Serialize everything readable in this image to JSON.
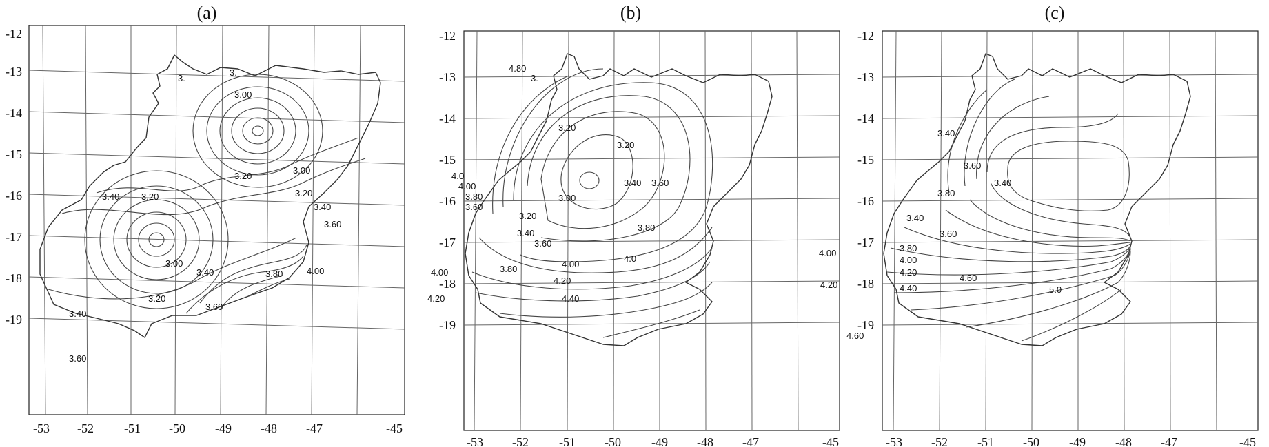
{
  "panels": [
    {
      "title": "(a)",
      "x_ticks": [
        "-53",
        "-52",
        "-51",
        "-50",
        "-49",
        "-48",
        "-47",
        "-45"
      ],
      "y_ticks": [
        "-12",
        "-13",
        "-14",
        "-15",
        "-16",
        "-17",
        "-18",
        "-19"
      ],
      "contour_labels": [
        "3.00",
        "3.00",
        "3.00",
        "3.20",
        "3.20",
        "3.20",
        "3.20",
        "3.40",
        "3.40",
        "3.40",
        "3.40",
        "3.60",
        "3.60",
        "3.80",
        "4.00",
        "3.",
        "3.",
        "3.60"
      ]
    },
    {
      "title": "(b)",
      "x_ticks": [
        "-53",
        "-52",
        "-51",
        "-50",
        "-49",
        "-48",
        "-47",
        "-45"
      ],
      "y_ticks": [
        "-12",
        "-13",
        "-14",
        "-15",
        "-16",
        "-17",
        "-18",
        "-19"
      ],
      "contour_labels": [
        "3.20",
        "3.20",
        "3.00",
        "3.20",
        "3.40",
        "3.40",
        "3.60",
        "3.60",
        "3.80",
        "3.80",
        "3.80",
        "4.00",
        "4.00",
        "4.00",
        "4.20",
        "4.20",
        "4.40",
        "4.0",
        "3.",
        "3.60",
        "4.0",
        "4.80"
      ]
    },
    {
      "title": "(c)",
      "x_ticks": [
        "-53",
        "-52",
        "-51",
        "-50",
        "-49",
        "-48",
        "-47",
        "-45"
      ],
      "y_ticks": [
        "-12",
        "-13",
        "-14",
        "-15",
        "-16",
        "-17",
        "-18",
        "-19"
      ],
      "contour_labels": [
        "3.40",
        "3.60",
        "3.80",
        "3.40",
        "3.60",
        "3.80",
        "4.00",
        "4.00",
        "4.20",
        "4.20",
        "4.40",
        "4.60",
        "4.60",
        "5.0",
        "3.40"
      ]
    }
  ]
}
